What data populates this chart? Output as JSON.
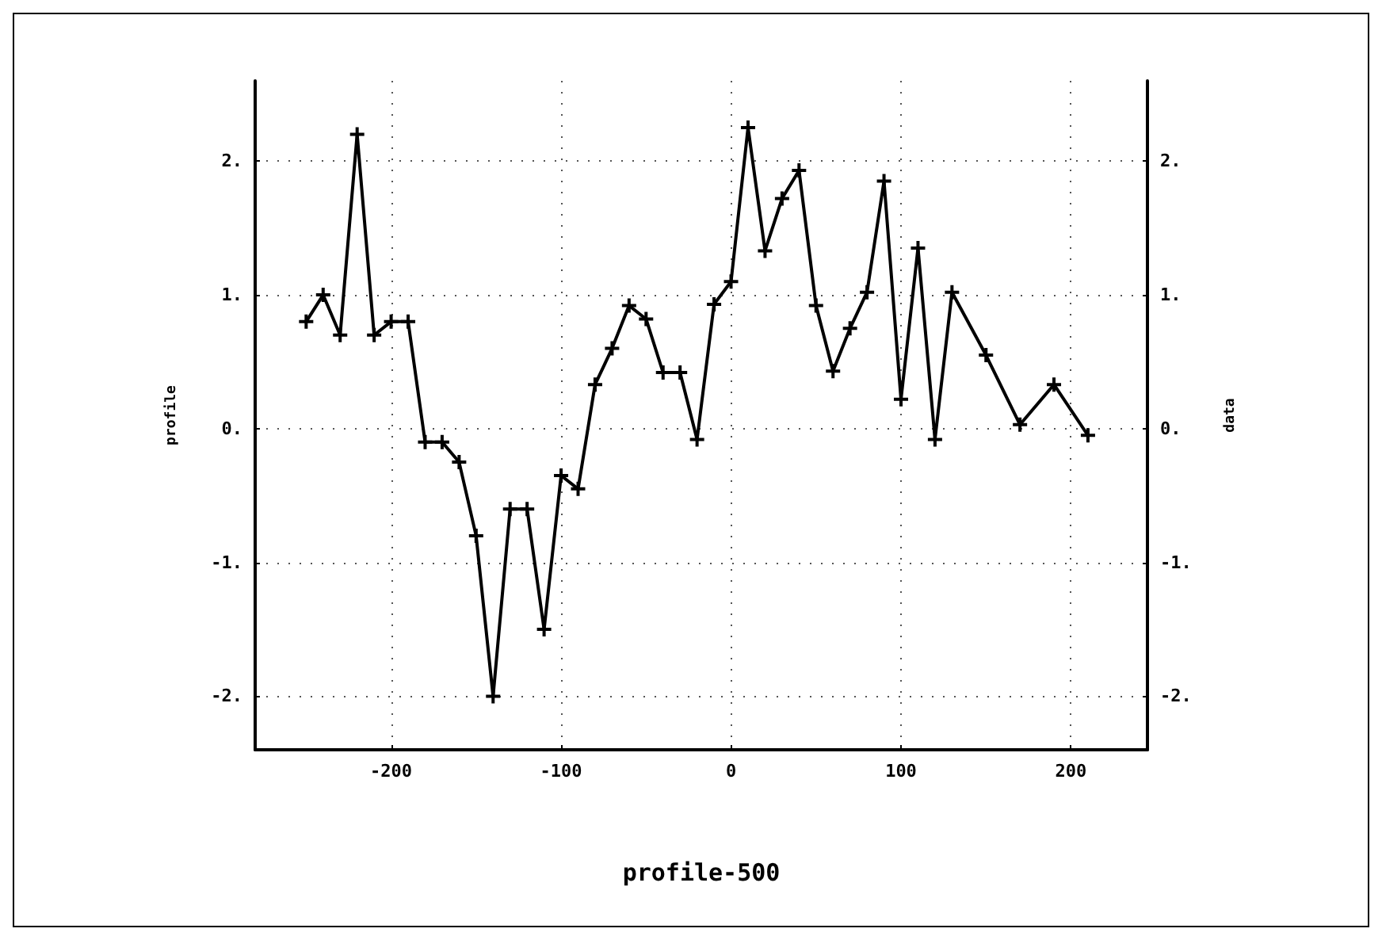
{
  "chart_data": {
    "type": "line",
    "xlabel": "profile-500",
    "ylabel": "profile",
    "y2label": "data",
    "x": [
      -250,
      -240,
      -230,
      -220,
      -210,
      -200,
      -190,
      -180,
      -170,
      -160,
      -150,
      -140,
      -130,
      -120,
      -110,
      -100,
      -90,
      -80,
      -70,
      -60,
      -50,
      -40,
      -30,
      -20,
      -10,
      0,
      10,
      20,
      30,
      40,
      50,
      60,
      70,
      80,
      90,
      100,
      110,
      120,
      130,
      150,
      170,
      190,
      210
    ],
    "series": [
      {
        "color": "#000000",
        "values": [
          0.8,
          1.0,
          0.7,
          2.2,
          0.7,
          0.8,
          0.8,
          -0.1,
          -0.1,
          -0.25,
          -0.8,
          -2.0,
          -0.6,
          -0.6,
          -1.5,
          -0.35,
          -0.45,
          0.33,
          0.6,
          0.92,
          0.82,
          0.42,
          0.42,
          -0.08,
          0.93,
          1.1,
          2.25,
          1.33,
          1.72,
          1.93,
          0.92,
          0.43,
          0.75,
          1.02,
          1.85,
          0.22,
          1.35,
          -0.08,
          1.02,
          0.55,
          0.03,
          0.33,
          -0.05
        ]
      }
    ],
    "xlim": [
      -280,
      245
    ],
    "xticks": [
      -200,
      -100,
      0,
      100,
      200
    ],
    "ylim": [
      -2.4,
      2.6
    ],
    "yticks": [
      {
        "value": -2,
        "label": "-2."
      },
      {
        "value": -1,
        "label": "-1."
      },
      {
        "value": 0,
        "label": "0."
      },
      {
        "value": 1,
        "label": "1."
      },
      {
        "value": 2,
        "label": "2."
      }
    ],
    "y2lim": [
      -2.4,
      2.6
    ],
    "y2ticks": [
      {
        "value": -2,
        "label": "-2."
      },
      {
        "value": -1,
        "label": "-1."
      },
      {
        "value": 0,
        "label": "0."
      },
      {
        "value": 1,
        "label": "1."
      },
      {
        "value": 2,
        "label": "2."
      }
    ],
    "grid": true,
    "marker": "cross",
    "line_style": "solid"
  }
}
